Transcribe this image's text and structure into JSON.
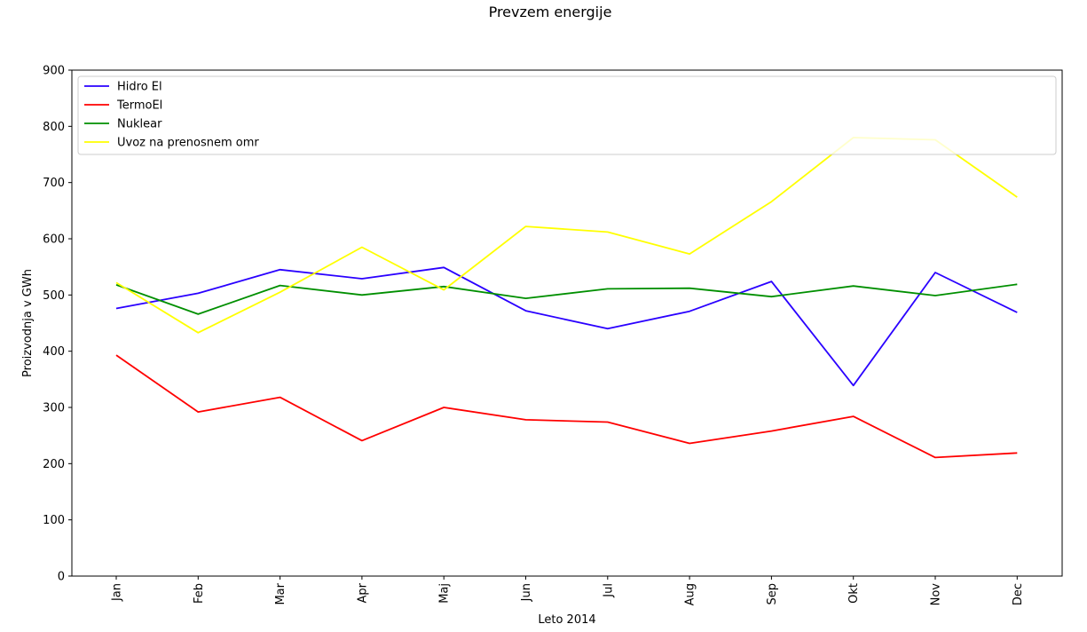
{
  "chart_data": {
    "type": "line",
    "title": "Prevzem energije",
    "xlabel": "Leto 2014",
    "ylabel": "Proizvodnja v GWh",
    "categories": [
      "Jan",
      "Feb",
      "Mar",
      "Apr",
      "Maj",
      "Jun",
      "Jul",
      "Aug",
      "Sep",
      "Okt",
      "Nov",
      "Dec"
    ],
    "ylim": [
      0,
      900
    ],
    "yticks": [
      "0",
      "100",
      "200",
      "300",
      "400",
      "500",
      "600",
      "700",
      "800",
      "900"
    ],
    "grid": false,
    "legend_position": "top (full width)",
    "series": [
      {
        "name": "Hidro El",
        "color": "#2a00ff",
        "values": [
          476,
          503,
          545,
          529,
          549,
          472,
          440,
          471,
          524,
          339,
          540,
          469
        ]
      },
      {
        "name": "TermoEl",
        "color": "#ff0000",
        "values": [
          393,
          292,
          318,
          241,
          300,
          278,
          274,
          236,
          258,
          284,
          211,
          219
        ]
      },
      {
        "name": "Nuklear",
        "color": "#008f00",
        "values": [
          518,
          466,
          517,
          500,
          515,
          494,
          511,
          512,
          497,
          516,
          499,
          519
        ]
      },
      {
        "name": "Uvoz na prenosnem omr",
        "color": "#ffff00",
        "values": [
          522,
          433,
          505,
          585,
          509,
          622,
          612,
          573,
          666,
          780,
          776,
          674
        ]
      }
    ]
  }
}
